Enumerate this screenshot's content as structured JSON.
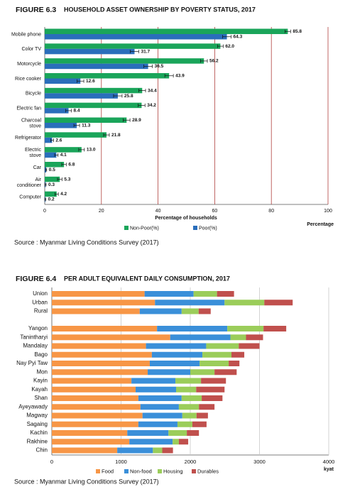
{
  "chart_data": [
    {
      "type": "grouped_barh",
      "figure_label": "FIGURE 6.3",
      "title": "HOUSEHOLD ASSET OWNERSHIP BY POVERTY STATUS, 2017",
      "categories": [
        "Mobile phone",
        "Color TV",
        "Motorcycle",
        "Rice cooker",
        "Bicycle",
        "Electric fan",
        "Charcoal stove",
        "Refrigerator",
        "Electric stove",
        "Car",
        "Air conditioner",
        "Computer"
      ],
      "series": [
        {
          "name": "Non-Poor(%)",
          "color": "#1aa55a",
          "values": [
            85.8,
            62.0,
            56.2,
            43.9,
            34.4,
            34.2,
            28.9,
            21.8,
            13.0,
            6.8,
            5.3,
            4.2
          ],
          "value_labels": [
            "85.8",
            "62.0",
            "56.2",
            "43.9",
            "34.4",
            "34.2",
            "28.9",
            "21.8",
            "13.0",
            "6.8",
            "5.3",
            "4.2"
          ],
          "errors": [
            1,
            1,
            1.2,
            1.5,
            1.2,
            1.2,
            1.2,
            1,
            1,
            0.8,
            0.8,
            0.6
          ]
        },
        {
          "name": "Poor(%)",
          "color": "#2a6ebb",
          "values": [
            64.3,
            31.7,
            36.5,
            12.6,
            25.8,
            8.4,
            11.3,
            2.6,
            4.1,
            0.5,
            0.3,
            0.2
          ],
          "value_labels": [
            "64.3",
            "31.7",
            "36.5",
            "12.6",
            "25.8",
            "8.4",
            "11.3",
            "2.6",
            "4.1",
            "0.5",
            "0.3",
            "0.2"
          ],
          "errors": [
            1.5,
            1.5,
            1.5,
            1.2,
            1.5,
            1,
            1,
            0.5,
            0.6,
            0.2,
            0.2,
            0.2
          ]
        }
      ],
      "xlim": [
        0,
        100
      ],
      "xticks": [
        0,
        20,
        40,
        60,
        80,
        100
      ],
      "x_label": "Percentage of households",
      "unit_label": "Percentage",
      "grid_color": "#b0413e",
      "source": "Source : Myanmar Living Conditions Survey (2017)"
    },
    {
      "type": "stacked_barh",
      "figure_label": "FIGURE 6.4",
      "title": "PER ADULT EQUIVALENT DAILY CONSUMPTION, 2017",
      "categories": [
        "Union",
        "Urban",
        "Rural",
        null,
        "Yangon",
        "Tanintharyi",
        "Mandalay",
        "Bago",
        "Nay Pyi Taw",
        "Mon",
        "Kayin",
        "Kayah",
        "Shan",
        "Ayeyawady",
        "Magway",
        "Sagaing",
        "Kachin",
        "Rakhine",
        "Chin"
      ],
      "series": [
        {
          "name": "Food",
          "color": "#f79646",
          "values": [
            1340,
            1490,
            1270,
            null,
            1520,
            1710,
            1360,
            1445,
            1415,
            1385,
            1150,
            1210,
            1250,
            1280,
            1310,
            1250,
            1090,
            1120,
            945
          ]
        },
        {
          "name": "Non-food",
          "color": "#3a8fd9",
          "values": [
            708,
            1005,
            605,
            null,
            1015,
            870,
            870,
            730,
            720,
            615,
            635,
            585,
            625,
            555,
            575,
            565,
            595,
            625,
            515
          ]
        },
        {
          "name": "Housing",
          "color": "#9bcd5a",
          "values": [
            338,
            574,
            246,
            null,
            523,
            225,
            470,
            420,
            420,
            350,
            370,
            290,
            290,
            290,
            205,
            215,
            265,
            90,
            135
          ]
        },
        {
          "name": "Durables",
          "color": "#c0504d",
          "values": [
            246,
            410,
            174,
            null,
            328,
            246,
            300,
            185,
            155,
            320,
            360,
            410,
            300,
            225,
            165,
            205,
            175,
            135,
            155
          ]
        }
      ],
      "xlim": [
        0,
        4000
      ],
      "xticks": [
        0,
        1000,
        2000,
        3000,
        4000
      ],
      "x_label": "kyat",
      "grid_color": "#c8c8c8",
      "source": "Source : Myanmar Living Conditions Survey (2017)"
    }
  ]
}
